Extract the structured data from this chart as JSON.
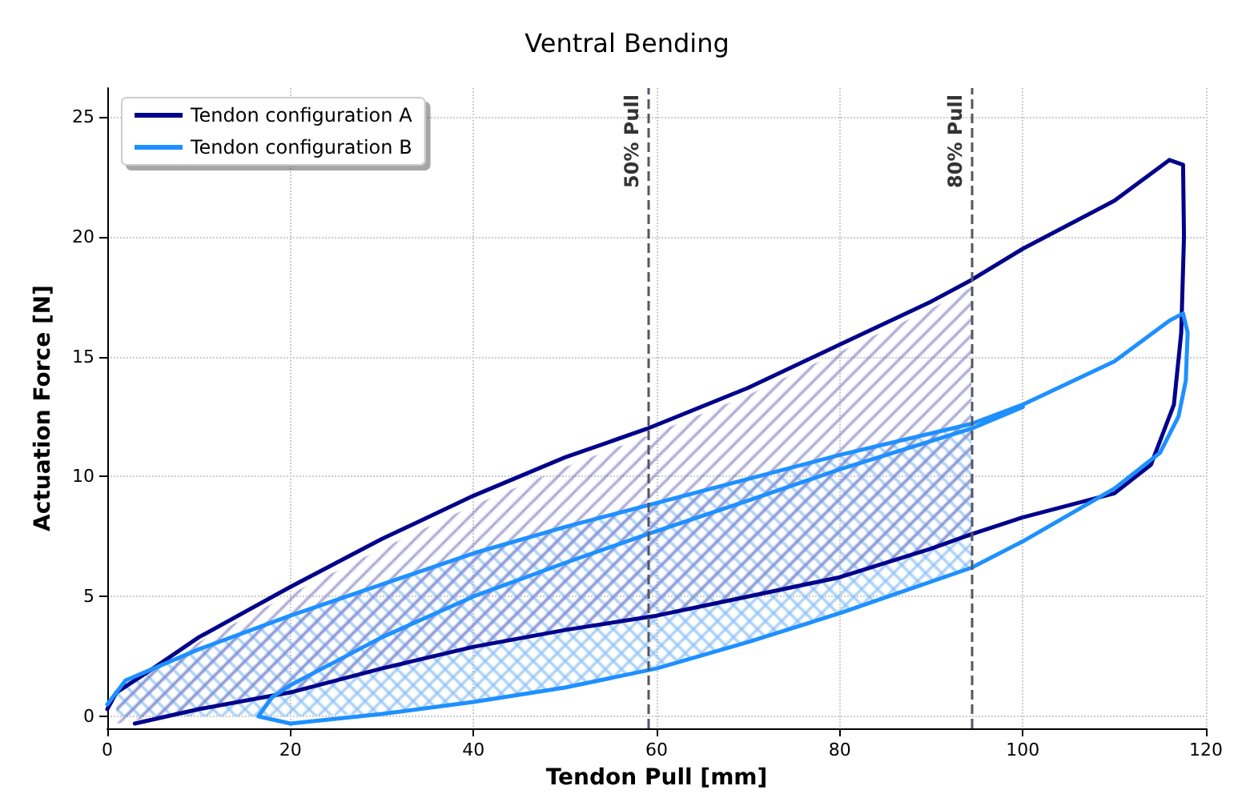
{
  "chart_data": {
    "type": "line",
    "title": "Ventral Bending",
    "xlabel": "Tendon Pull [mm]",
    "ylabel": "Actuation Force [N]",
    "xlim": [
      0,
      120
    ],
    "xticks": [
      0,
      20,
      40,
      60,
      80,
      100,
      120
    ],
    "ylim": [
      -0.5,
      26.2
    ],
    "yticks": [
      0,
      5,
      10,
      15,
      20,
      25
    ],
    "grid": true,
    "legend": "top left",
    "marker": "none",
    "line_style": "solid",
    "ref_lines": [
      {
        "axis": "x",
        "value": 59.0,
        "label": "50% Pull",
        "color": "#555566",
        "line_style": "dashed"
      },
      {
        "axis": "x",
        "value": 94.4,
        "label": "80% Pull",
        "color": "#555566",
        "line_style": "dashed"
      }
    ],
    "series": [
      {
        "type": "area",
        "color": "#7f7fc4",
        "x": [
          1,
          10,
          20,
          30,
          40,
          50,
          59,
          70,
          80,
          90,
          94.4,
          94.4,
          90,
          80,
          70,
          59,
          50,
          40,
          30,
          20,
          10,
          1
        ],
        "values": [
          1.0,
          3.1,
          5.1,
          7.0,
          8.8,
          10.4,
          11.7,
          13.4,
          15.2,
          17.0,
          17.9,
          7.6,
          7.0,
          5.8,
          5.0,
          4.2,
          3.6,
          2.9,
          2.0,
          1.0,
          0.3,
          -0.3
        ]
      },
      {
        "type": "area",
        "color": "#7fb8f5",
        "x": [
          1,
          10,
          20,
          30,
          40,
          50,
          59,
          70,
          80,
          90,
          94.4,
          94.4,
          90,
          80,
          70,
          59,
          50,
          40,
          30,
          20,
          10,
          1
        ],
        "values": [
          1.2,
          2.8,
          4.2,
          5.5,
          6.8,
          7.9,
          8.8,
          9.9,
          10.9,
          11.8,
          12.2,
          6.2,
          5.6,
          4.3,
          3.1,
          2.0,
          1.2,
          0.6,
          0.1,
          0,
          0,
          0
        ]
      },
      {
        "name": "Tendon configuration A",
        "color": "#00008b",
        "x": [
          0,
          1,
          5,
          10,
          20,
          30,
          40,
          50,
          59,
          70,
          80,
          90,
          94.4,
          100,
          110,
          116,
          117.5,
          117.6,
          117.3,
          116.5,
          114,
          110,
          100,
          94.4,
          90,
          80,
          70,
          60,
          50,
          40,
          30,
          20,
          10,
          3
        ],
        "values": [
          0.3,
          1.0,
          2.0,
          3.3,
          5.4,
          7.4,
          9.2,
          10.8,
          12.0,
          13.7,
          15.5,
          17.3,
          18.2,
          19.5,
          21.5,
          23.2,
          23.0,
          20,
          16,
          13,
          10.5,
          9.3,
          8.3,
          7.6,
          7.0,
          5.8,
          5.0,
          4.2,
          3.6,
          2.9,
          2.0,
          1.0,
          0.3,
          -0.3
        ]
      },
      {
        "name": "Tendon configuration B",
        "color": "#1e90ff",
        "x": [
          0,
          2,
          10,
          20,
          30,
          40,
          50,
          59,
          70,
          80,
          94.4,
          100,
          110,
          116,
          117.5,
          118,
          117.8,
          117,
          115,
          110,
          100,
          94.4,
          80,
          70,
          60,
          50,
          40,
          30,
          20,
          16.5,
          18,
          20,
          25,
          30,
          40,
          50,
          59,
          70,
          80,
          94.4,
          100
        ],
        "values": [
          0.5,
          1.5,
          2.8,
          4.2,
          5.5,
          6.8,
          7.9,
          8.8,
          9.9,
          10.9,
          12.2,
          13.0,
          14.8,
          16.5,
          16.8,
          16.0,
          14.0,
          12.5,
          11.0,
          9.5,
          7.3,
          6.2,
          4.3,
          3.1,
          2.0,
          1.2,
          0.6,
          0.1,
          -0.3,
          0,
          0.8,
          1.3,
          2.3,
          3.3,
          5.0,
          6.4,
          7.6,
          9.0,
          10.3,
          12.0,
          12.9
        ]
      }
    ]
  }
}
